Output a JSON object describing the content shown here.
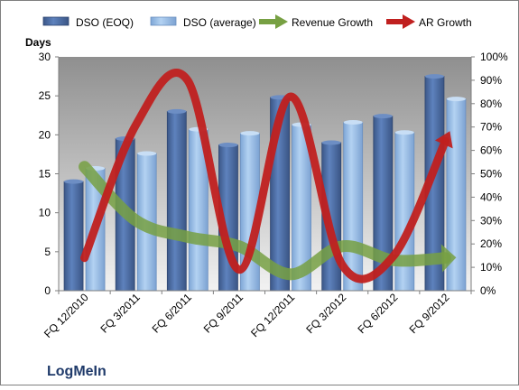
{
  "chart_data": {
    "type": "bar",
    "title": "",
    "company_label": "LogMeIn",
    "y_left_label": "Days",
    "categories": [
      "FQ 12/2010",
      "FQ 3/2011",
      "FQ 6/2011",
      "FQ 9/2011",
      "FQ 12/2011",
      "FQ 3/2012",
      "FQ 6/2012",
      "FQ 9/2012"
    ],
    "y_left_ticks": [
      "0",
      "5",
      "10",
      "15",
      "20",
      "25",
      "30"
    ],
    "y_right_ticks": [
      "0%",
      "10%",
      "20%",
      "30%",
      "40%",
      "50%",
      "60%",
      "70%",
      "80%",
      "90%",
      "100%"
    ],
    "ylim_left": [
      0,
      30
    ],
    "ylim_right": [
      0,
      100
    ],
    "legend_position": "top",
    "series": [
      {
        "name": "DSO (EOQ)",
        "kind": "bar",
        "axis": "left",
        "color": "#4a6ea8",
        "values": [
          14.0,
          19.5,
          23.0,
          18.7,
          24.8,
          19.0,
          22.4,
          27.5
        ]
      },
      {
        "name": "DSO (average)",
        "kind": "bar",
        "axis": "left",
        "color": "#8fb8e6",
        "values": [
          15.7,
          17.6,
          20.7,
          20.2,
          21.3,
          21.6,
          20.3,
          24.6
        ]
      },
      {
        "name": "Revenue Growth",
        "kind": "line-arrow",
        "axis": "right",
        "color": "#77a043",
        "values": [
          53,
          30,
          23,
          19,
          7,
          19,
          13,
          14
        ]
      },
      {
        "name": "AR Growth",
        "kind": "line-arrow",
        "axis": "right",
        "color": "#c0201f",
        "values": [
          14,
          71,
          90,
          9,
          83,
          11,
          15,
          64
        ]
      }
    ],
    "grid": false
  }
}
